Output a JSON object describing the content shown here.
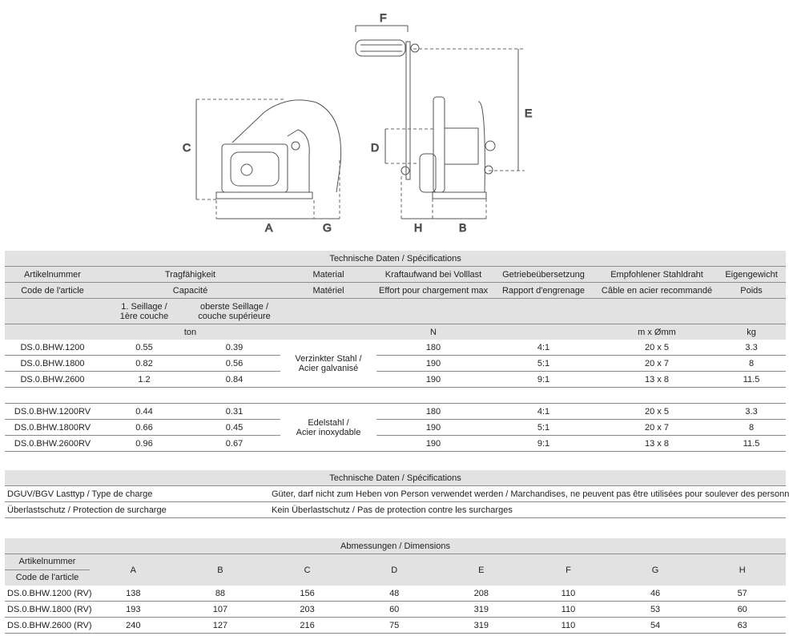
{
  "diagram": {
    "labels": [
      "A",
      "B",
      "C",
      "D",
      "E",
      "F",
      "G",
      "H"
    ]
  },
  "tech": {
    "title": "Technische Daten / Spécifications",
    "head_de": [
      "Artikelnummer",
      "Tragfähigkeit",
      "Material",
      "Kraftaufwand bei Volllast",
      "Getriebeübersetzung",
      "Empfohlener Stahldraht",
      "Eigengewicht"
    ],
    "head_fr": [
      "Code de l'article",
      "Capacité",
      "Matériel",
      "Effort pour chargement max",
      "Rapport d'engrenage",
      "Câble en acier recommandé",
      "Poids"
    ],
    "sub": [
      "1. Seillage /",
      "1ère couche",
      "oberste Seillage /",
      "couche supérieure"
    ],
    "units": [
      "ton",
      "N",
      "m x Ømm",
      "kg"
    ],
    "groups": [
      {
        "material": [
          "Verzinkter Stahl /",
          "Acier galvanisé"
        ],
        "rows": [
          [
            "DS.0.BHW.1200",
            "0.55",
            "0.39",
            "180",
            "4:1",
            "20 x 5",
            "3.3"
          ],
          [
            "DS.0.BHW.1800",
            "0.82",
            "0.56",
            "190",
            "5:1",
            "20 x 7",
            "8"
          ],
          [
            "DS.0.BHW.2600",
            "1.2",
            "0.84",
            "190",
            "9:1",
            "13 x 8",
            "11.5"
          ]
        ]
      },
      {
        "material": [
          "Edelstahl /",
          "Acier inoxydable"
        ],
        "rows": [
          [
            "DS.0.BHW.1200RV",
            "0.44",
            "0.31",
            "180",
            "4:1",
            "20 x 5",
            "3.3"
          ],
          [
            "DS.0.BHW.1800RV",
            "0.66",
            "0.45",
            "190",
            "5:1",
            "20 x 7",
            "8"
          ],
          [
            "DS.0.BHW.2600RV",
            "0.96",
            "0.67",
            "190",
            "9:1",
            "13 x 8",
            "11.5"
          ]
        ]
      }
    ]
  },
  "tech2": {
    "title": "Technische Daten / Spécifications",
    "rows": [
      [
        "DGUV/BGV Lasttyp / Type de charge",
        "Güter, darf nicht zum Heben von Person verwendet werden / Marchandises, ne peuvent pas être utilisées pour soulever des personnes"
      ],
      [
        "Überlastschutz / Protection de surcharge",
        "Kein Überlastschutz / Pas de protection contre les surcharges"
      ]
    ]
  },
  "dims": {
    "title": "Abmessungen / Dimensions",
    "head_de": "Artikelnummer",
    "head_fr": "Code de l'article",
    "cols": [
      "A",
      "B",
      "C",
      "D",
      "E",
      "F",
      "G",
      "H"
    ],
    "rows": [
      [
        "DS.0.BHW.1200 (RV)",
        "138",
        "88",
        "156",
        "48",
        "208",
        "110",
        "46",
        "57"
      ],
      [
        "DS.0.BHW.1800 (RV)",
        "193",
        "107",
        "203",
        "60",
        "319",
        "110",
        "53",
        "60"
      ],
      [
        "DS.0.BHW.2600 (RV)",
        "240",
        "127",
        "216",
        "75",
        "319",
        "110",
        "54",
        "63"
      ]
    ]
  }
}
